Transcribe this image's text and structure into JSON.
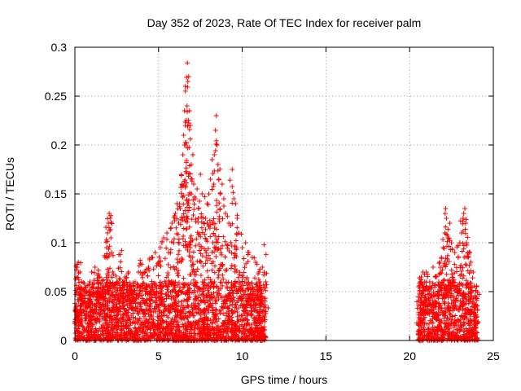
{
  "chart_data": {
    "type": "scatter",
    "title": "Day 352 of 2023, Rate Of TEC Index for receiver palm",
    "xlabel": "GPS time / hours",
    "ylabel": "ROTI / TECUs",
    "xlim": [
      0,
      25
    ],
    "ylim": [
      0,
      0.3
    ],
    "xticks": [
      0,
      5,
      10,
      15,
      20,
      25
    ],
    "xtick_labels": [
      "0",
      "5",
      "10",
      "15",
      "20",
      "25"
    ],
    "yticks": [
      0,
      0.05,
      0.1,
      0.15,
      0.2,
      0.25,
      0.3
    ],
    "ytick_labels": [
      "0",
      "0.05",
      "0.1",
      "0.15",
      "0.2",
      "0.25",
      "0.3"
    ],
    "grid": true,
    "marker": "+",
    "color": "#ff0000",
    "series": [
      {
        "name": "ROTI",
        "points": [
          [
            0.0,
            0.038
          ],
          [
            0.1,
            0.065
          ],
          [
            0.15,
            0.078
          ],
          [
            0.2,
            0.08
          ],
          [
            0.3,
            0.055
          ],
          [
            0.4,
            0.06
          ],
          [
            0.5,
            0.045
          ],
          [
            0.7,
            0.05
          ],
          [
            0.9,
            0.06
          ],
          [
            1.0,
            0.07
          ],
          [
            1.2,
            0.075
          ],
          [
            1.4,
            0.072
          ],
          [
            1.5,
            0.065
          ],
          [
            1.6,
            0.058
          ],
          [
            1.7,
            0.062
          ],
          [
            1.8,
            0.085
          ],
          [
            1.9,
            0.095
          ],
          [
            1.95,
            0.11
          ],
          [
            2.0,
            0.12
          ],
          [
            2.05,
            0.13
          ],
          [
            2.1,
            0.125
          ],
          [
            2.15,
            0.105
          ],
          [
            2.2,
            0.09
          ],
          [
            2.3,
            0.068
          ],
          [
            2.5,
            0.06
          ],
          [
            2.6,
            0.074
          ],
          [
            2.7,
            0.088
          ],
          [
            2.8,
            0.092
          ],
          [
            3.0,
            0.065
          ],
          [
            3.2,
            0.07
          ],
          [
            3.4,
            0.05
          ],
          [
            3.6,
            0.06
          ],
          [
            3.8,
            0.07
          ],
          [
            3.9,
            0.082
          ],
          [
            4.0,
            0.078
          ],
          [
            4.2,
            0.07
          ],
          [
            4.4,
            0.075
          ],
          [
            4.6,
            0.085
          ],
          [
            4.8,
            0.09
          ],
          [
            5.0,
            0.08
          ],
          [
            5.1,
            0.095
          ],
          [
            5.2,
            0.1
          ],
          [
            5.3,
            0.105
          ],
          [
            5.5,
            0.11
          ],
          [
            5.6,
            0.09
          ],
          [
            5.8,
            0.12
          ],
          [
            5.9,
            0.1
          ],
          [
            6.0,
            0.13
          ],
          [
            6.1,
            0.14
          ],
          [
            6.2,
            0.12
          ],
          [
            6.3,
            0.135
          ],
          [
            6.4,
            0.16
          ],
          [
            6.45,
            0.19
          ],
          [
            6.5,
            0.21
          ],
          [
            6.55,
            0.2
          ],
          [
            6.6,
            0.26
          ],
          [
            6.65,
            0.225
          ],
          [
            6.7,
            0.24
          ],
          [
            6.72,
            0.284
          ],
          [
            6.75,
            0.265
          ],
          [
            6.8,
            0.27
          ],
          [
            6.85,
            0.235
          ],
          [
            6.9,
            0.22
          ],
          [
            6.95,
            0.18
          ],
          [
            7.0,
            0.165
          ],
          [
            7.05,
            0.19
          ],
          [
            7.1,
            0.16
          ],
          [
            7.2,
            0.145
          ],
          [
            7.3,
            0.155
          ],
          [
            7.4,
            0.135
          ],
          [
            7.5,
            0.17
          ],
          [
            7.6,
            0.15
          ],
          [
            7.7,
            0.12
          ],
          [
            7.8,
            0.125
          ],
          [
            7.9,
            0.14
          ],
          [
            8.0,
            0.15
          ],
          [
            8.1,
            0.165
          ],
          [
            8.2,
            0.185
          ],
          [
            8.3,
            0.16
          ],
          [
            8.4,
            0.215
          ],
          [
            8.45,
            0.23
          ],
          [
            8.5,
            0.2
          ],
          [
            8.55,
            0.18
          ],
          [
            8.6,
            0.165
          ],
          [
            8.7,
            0.15
          ],
          [
            8.8,
            0.16
          ],
          [
            8.9,
            0.145
          ],
          [
            9.0,
            0.13
          ],
          [
            9.2,
            0.12
          ],
          [
            9.4,
            0.175
          ],
          [
            9.5,
            0.145
          ],
          [
            9.6,
            0.14
          ],
          [
            9.7,
            0.125
          ],
          [
            9.8,
            0.11
          ],
          [
            10.0,
            0.095
          ],
          [
            10.2,
            0.1
          ],
          [
            10.4,
            0.09
          ],
          [
            10.6,
            0.085
          ],
          [
            10.8,
            0.08
          ],
          [
            11.0,
            0.07
          ],
          [
            11.2,
            0.075
          ],
          [
            11.3,
            0.098
          ],
          [
            11.4,
            0.06
          ],
          [
            20.6,
            0.05
          ],
          [
            20.7,
            0.065
          ],
          [
            20.8,
            0.07
          ],
          [
            20.9,
            0.06
          ],
          [
            21.0,
            0.07
          ],
          [
            21.2,
            0.06
          ],
          [
            21.4,
            0.075
          ],
          [
            21.6,
            0.065
          ],
          [
            21.8,
            0.08
          ],
          [
            21.9,
            0.085
          ],
          [
            22.0,
            0.095
          ],
          [
            22.1,
            0.11
          ],
          [
            22.15,
            0.135
          ],
          [
            22.2,
            0.125
          ],
          [
            22.3,
            0.105
          ],
          [
            22.4,
            0.12
          ],
          [
            22.5,
            0.1
          ],
          [
            22.7,
            0.09
          ],
          [
            22.9,
            0.085
          ],
          [
            23.0,
            0.1
          ],
          [
            23.1,
            0.11
          ],
          [
            23.2,
            0.125
          ],
          [
            23.3,
            0.135
          ],
          [
            23.35,
            0.12
          ],
          [
            23.4,
            0.1
          ],
          [
            23.5,
            0.085
          ],
          [
            23.6,
            0.09
          ],
          [
            23.8,
            0.07
          ],
          [
            24.0,
            0.055
          ]
        ],
        "cloud": {
          "description": "dense band of low ROTI values",
          "ranges_hours": [
            [
              0,
              11.4
            ],
            [
              20.5,
              24.1
            ]
          ],
          "y_range": [
            0,
            0.06
          ]
        }
      }
    ]
  }
}
